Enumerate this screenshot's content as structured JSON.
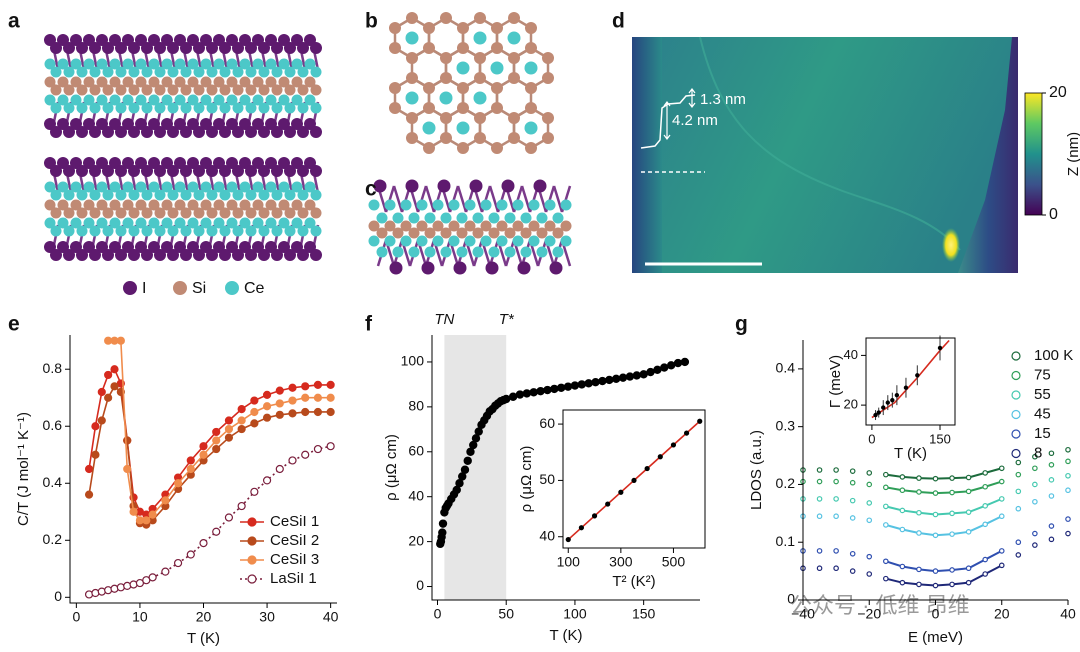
{
  "panel_labels": [
    "a",
    "b",
    "c",
    "d",
    "e",
    "f",
    "g"
  ],
  "structure_legend": [
    "I",
    "Si",
    "Ce"
  ],
  "stm": {
    "annotations": [
      "1.3 nm",
      "4.2 nm"
    ],
    "colorbar_label": "Z (nm)",
    "colorbar_lim": [
      0,
      20
    ],
    "colorbar_ticks": [
      0,
      20
    ]
  },
  "watermark": "公众号 · 低维 昂维",
  "chart_data": [
    {
      "type": "line",
      "xlabel": "T (K)",
      "ylabel": "C/T (J mol⁻¹ K⁻¹)",
      "xlim": [
        -1,
        41
      ],
      "ylim": [
        -0.02,
        0.92
      ],
      "xticks": [
        0,
        10,
        20,
        30,
        40
      ],
      "yticks": [
        0,
        0.2,
        0.4,
        0.6,
        0.8
      ],
      "legend": "lower right",
      "x": [
        2,
        3,
        4,
        5,
        6,
        7,
        8,
        9,
        10,
        11,
        12,
        14,
        16,
        18,
        20,
        22,
        24,
        26,
        28,
        30,
        32,
        34,
        36,
        38,
        40
      ],
      "series": [
        {
          "name": "CeSiI 1",
          "color": "#d62a1e",
          "marker": "filled",
          "line": true,
          "values": [
            0.45,
            0.6,
            0.72,
            0.78,
            0.8,
            0.75,
            0.55,
            0.35,
            0.3,
            0.29,
            0.31,
            0.36,
            0.42,
            0.48,
            0.53,
            0.58,
            0.62,
            0.66,
            0.69,
            0.71,
            0.725,
            0.735,
            0.74,
            0.745,
            0.745
          ]
        },
        {
          "name": "CeSiI 2",
          "color": "#b84a1c",
          "marker": "filled",
          "line": true,
          "values": [
            0.36,
            0.5,
            0.62,
            0.7,
            0.74,
            0.72,
            0.55,
            0.32,
            0.26,
            0.255,
            0.27,
            0.32,
            0.38,
            0.43,
            0.48,
            0.52,
            0.56,
            0.59,
            0.61,
            0.63,
            0.64,
            0.645,
            0.65,
            0.65,
            0.65
          ]
        },
        {
          "name": "CeSiI 3",
          "color": "#f08c4c",
          "marker": "filled",
          "line": true,
          "values": [
            null,
            null,
            null,
            0.9,
            0.9,
            0.9,
            0.45,
            0.3,
            0.27,
            0.27,
            0.29,
            0.34,
            0.4,
            0.45,
            0.5,
            0.55,
            0.59,
            0.62,
            0.65,
            0.67,
            0.68,
            0.69,
            0.7,
            0.7,
            0.7
          ]
        },
        {
          "name": "LaSiI 1",
          "color": "#7a1e3c",
          "marker": "open",
          "line": true,
          "dash": true,
          "values": [
            0.01,
            0.015,
            0.02,
            0.025,
            0.03,
            0.035,
            0.04,
            0.045,
            0.05,
            0.06,
            0.07,
            0.09,
            0.12,
            0.15,
            0.19,
            0.23,
            0.28,
            0.32,
            0.37,
            0.41,
            0.45,
            0.48,
            0.5,
            0.52,
            0.53
          ]
        }
      ]
    },
    {
      "type": "scatter",
      "xlabel": "T (K)",
      "ylabel": "ρ (μΩ cm)",
      "xlim": [
        -4,
        191
      ],
      "ylim": [
        -6,
        112
      ],
      "xticks": [
        0,
        50,
        100,
        150
      ],
      "yticks": [
        0,
        20,
        40,
        60,
        80,
        100
      ],
      "shade": [
        5,
        50
      ],
      "shade_labels": [
        "TN",
        "T*"
      ],
      "x": [
        2,
        2.5,
        3,
        3.5,
        4,
        5,
        6,
        7,
        8,
        10,
        12,
        14,
        16,
        18,
        20,
        22,
        24,
        26,
        28,
        30,
        32,
        34,
        36,
        38,
        40,
        42,
        44,
        46,
        48,
        50,
        55,
        60,
        65,
        70,
        75,
        80,
        85,
        90,
        95,
        100,
        105,
        110,
        115,
        120,
        125,
        130,
        135,
        140,
        145,
        150,
        155,
        160,
        165,
        170,
        175,
        180
      ],
      "series": [
        {
          "color": "#000000",
          "marker": "filled",
          "line": false,
          "values": [
            19,
            20,
            22,
            24,
            28,
            33,
            35,
            36,
            37,
            39,
            41,
            43,
            46,
            49,
            52,
            56,
            60,
            63,
            66,
            69,
            72,
            74,
            76,
            78,
            79,
            80.5,
            81.5,
            82.5,
            83,
            83.5,
            84.5,
            85.5,
            86,
            86.5,
            87,
            87.5,
            88,
            88.5,
            89,
            89.5,
            90,
            90.5,
            91,
            91.5,
            92,
            92.5,
            93,
            93.5,
            94,
            94.5,
            95.5,
            96.5,
            97.5,
            98.5,
            99.5,
            100
          ]
        }
      ]
    },
    {
      "type": "scatter",
      "xlabel": "T² (K²)",
      "ylabel": "ρ (μΩ cm)",
      "xlim": [
        80,
        620
      ],
      "ylim": [
        38,
        62.5
      ],
      "xticks": [
        100,
        300,
        500
      ],
      "yticks": [
        40,
        50,
        60
      ],
      "series": [
        {
          "color": "#d62a1e",
          "line": true,
          "x": [
            100,
            600
          ],
          "values": [
            39.5,
            60.5
          ]
        },
        {
          "color": "#000000",
          "marker": "filled",
          "line": false,
          "x": [
            100,
            150,
            200,
            250,
            300,
            350,
            400,
            450,
            500,
            550,
            600
          ],
          "values": [
            39.5,
            41.6,
            43.7,
            45.8,
            47.9,
            50,
            52.1,
            54.2,
            56.3,
            58.4,
            60.5
          ]
        }
      ]
    },
    {
      "type": "scatter",
      "xlabel": "E (meV)",
      "ylabel": "LDOS (a.u.)",
      "xlim": [
        -40,
        40
      ],
      "ylim": [
        0,
        0.45
      ],
      "xticks": [
        {
          "value": -40,
          "label": "−40"
        },
        {
          "value": -20,
          "label": "−20"
        },
        0,
        20,
        40
      ],
      "yticks": [
        0,
        0.1,
        0.2,
        0.3,
        0.4
      ],
      "legend": "upper right",
      "fit_range": [
        -15,
        20
      ],
      "x": [
        -40,
        -35,
        -30,
        -25,
        -20,
        -15,
        -10,
        -5,
        0,
        5,
        10,
        15,
        20,
        25,
        30,
        35,
        40
      ],
      "series": [
        {
          "name": "100 K",
          "color": "#1c6b3c",
          "marker": "open",
          "values": [
            0.225,
            0.225,
            0.225,
            0.223,
            0.22,
            0.217,
            0.213,
            0.211,
            0.21,
            0.211,
            0.212,
            0.22,
            0.228,
            0.238,
            0.248,
            0.254,
            0.26
          ]
        },
        {
          "name": "75",
          "color": "#2f9e58",
          "marker": "open",
          "values": [
            0.205,
            0.205,
            0.205,
            0.203,
            0.2,
            0.195,
            0.19,
            0.187,
            0.185,
            0.186,
            0.188,
            0.196,
            0.205,
            0.217,
            0.228,
            0.234,
            0.24
          ]
        },
        {
          "name": "55",
          "color": "#45c9b0",
          "marker": "open",
          "values": [
            0.175,
            0.175,
            0.175,
            0.172,
            0.168,
            0.162,
            0.155,
            0.151,
            0.148,
            0.15,
            0.152,
            0.163,
            0.175,
            0.188,
            0.2,
            0.208,
            0.215
          ]
        },
        {
          "name": "45",
          "color": "#56c2e2",
          "marker": "open",
          "values": [
            0.145,
            0.145,
            0.145,
            0.142,
            0.138,
            0.13,
            0.122,
            0.116,
            0.112,
            0.114,
            0.118,
            0.131,
            0.145,
            0.158,
            0.17,
            0.18,
            0.19
          ]
        },
        {
          "name": "15",
          "color": "#2f4fb0",
          "marker": "open",
          "values": [
            0.085,
            0.085,
            0.085,
            0.08,
            0.075,
            0.067,
            0.058,
            0.053,
            0.05,
            0.052,
            0.055,
            0.07,
            0.085,
            0.1,
            0.115,
            0.128,
            0.14
          ]
        },
        {
          "name": "8",
          "color": "#1f2878",
          "marker": "open",
          "values": [
            0.055,
            0.055,
            0.055,
            0.05,
            0.045,
            0.037,
            0.03,
            0.027,
            0.025,
            0.027,
            0.03,
            0.045,
            0.06,
            0.078,
            0.095,
            0.105,
            0.115
          ]
        }
      ]
    },
    {
      "type": "scatter",
      "xlabel": "T (K)",
      "ylabel": "Γ (meV)",
      "xlim": [
        -13,
        183
      ],
      "ylim": [
        12,
        47
      ],
      "xticks": [
        0,
        150
      ],
      "yticks": [
        20,
        40
      ],
      "series": [
        {
          "color": "#d62a1e",
          "line": true,
          "x": [
            0,
            50,
            100,
            150,
            170
          ],
          "values": [
            15,
            21,
            31,
            42,
            46
          ]
        },
        {
          "color": "#000000",
          "marker": "filled",
          "line": false,
          "x": [
            8,
            15,
            25,
            35,
            45,
            55,
            75,
            100,
            150
          ],
          "values": [
            16,
            17,
            19,
            21,
            22,
            24,
            27,
            32,
            43
          ],
          "errors": [
            2,
            2,
            3,
            3,
            3,
            4,
            4,
            4,
            5
          ]
        }
      ]
    }
  ]
}
